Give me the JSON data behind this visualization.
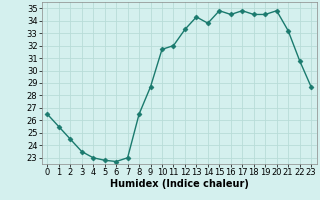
{
  "x": [
    0,
    1,
    2,
    3,
    4,
    5,
    6,
    7,
    8,
    9,
    10,
    11,
    12,
    13,
    14,
    15,
    16,
    17,
    18,
    19,
    20,
    21,
    22,
    23
  ],
  "y": [
    26.5,
    25.5,
    24.5,
    23.5,
    23.0,
    22.8,
    22.7,
    23.0,
    26.5,
    28.7,
    31.7,
    32.0,
    33.3,
    34.3,
    33.8,
    34.8,
    34.5,
    34.8,
    34.5,
    34.5,
    34.8,
    33.2,
    30.8,
    28.7
  ],
  "line_color": "#1a7a6e",
  "marker": "D",
  "markersize": 2.5,
  "linewidth": 1.0,
  "xlabel": "Humidex (Indice chaleur)",
  "xlim": [
    -0.5,
    23.5
  ],
  "ylim": [
    22.5,
    35.5
  ],
  "yticks": [
    23,
    24,
    25,
    26,
    27,
    28,
    29,
    30,
    31,
    32,
    33,
    34,
    35
  ],
  "xticks": [
    0,
    1,
    2,
    3,
    4,
    5,
    6,
    7,
    8,
    9,
    10,
    11,
    12,
    13,
    14,
    15,
    16,
    17,
    18,
    19,
    20,
    21,
    22,
    23
  ],
  "bg_color": "#d4f0ee",
  "grid_color": "#b8dcd8",
  "label_fontsize": 7,
  "tick_fontsize": 6
}
